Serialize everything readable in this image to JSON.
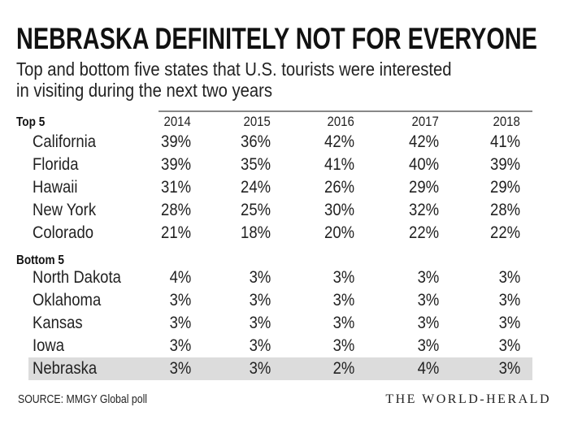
{
  "title": "NEBRASKA DEFINITELY NOT FOR EVERYONE",
  "subtitle_lines": [
    "Top and bottom five states that U.S. tourists were interested",
    "in visiting during the next two years"
  ],
  "source": "SOURCE: MMGY Global poll",
  "brand": "THE WORLD-HERALD",
  "highlight_color": "#dcdcdc",
  "chart_data": {
    "type": "table",
    "columns": [
      "2014",
      "2015",
      "2016",
      "2017",
      "2018"
    ],
    "sections": [
      {
        "label": "Top 5",
        "rows": [
          {
            "state": "California",
            "values": [
              "39%",
              "36%",
              "42%",
              "42%",
              "41%"
            ]
          },
          {
            "state": "Florida",
            "values": [
              "39%",
              "35%",
              "41%",
              "40%",
              "39%"
            ]
          },
          {
            "state": "Hawaii",
            "values": [
              "31%",
              "24%",
              "26%",
              "29%",
              "29%"
            ]
          },
          {
            "state": "New York",
            "values": [
              "28%",
              "25%",
              "30%",
              "32%",
              "28%"
            ]
          },
          {
            "state": "Colorado",
            "values": [
              "21%",
              "18%",
              "20%",
              "22%",
              "22%"
            ]
          }
        ]
      },
      {
        "label": "Bottom 5",
        "rows": [
          {
            "state": "North Dakota",
            "values": [
              "4%",
              "3%",
              "3%",
              "3%",
              "3%"
            ]
          },
          {
            "state": "Oklahoma",
            "values": [
              "3%",
              "3%",
              "3%",
              "3%",
              "3%"
            ]
          },
          {
            "state": "Kansas",
            "values": [
              "3%",
              "3%",
              "3%",
              "3%",
              "3%"
            ]
          },
          {
            "state": "Iowa",
            "values": [
              "3%",
              "3%",
              "3%",
              "3%",
              "3%"
            ]
          },
          {
            "state": "Nebraska",
            "values": [
              "3%",
              "3%",
              "2%",
              "4%",
              "3%"
            ],
            "highlighted": true
          }
        ]
      }
    ]
  }
}
